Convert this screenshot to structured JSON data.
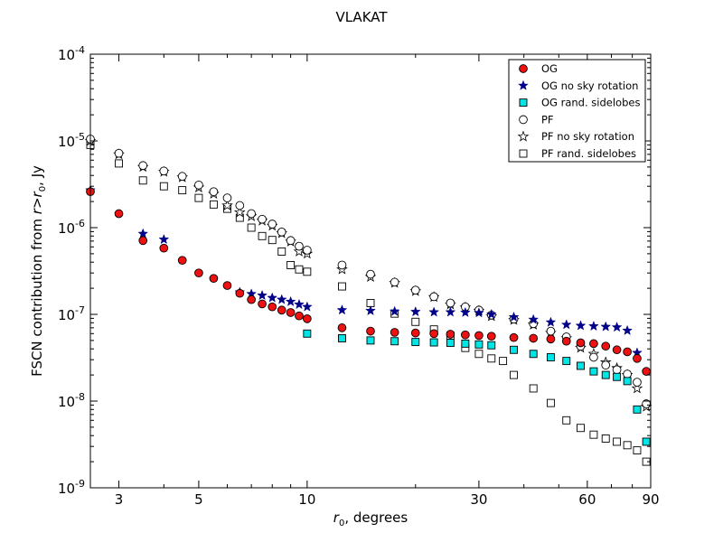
{
  "chart_data": {
    "type": "scatter",
    "title": "VLAKAT",
    "xlabel": "r_0, degrees",
    "ylabel": "FSCN contribution from r>r_0, Jy",
    "xscale": "log",
    "yscale": "log",
    "xlim": [
      2.5,
      90
    ],
    "ylim": [
      1e-09,
      0.0001
    ],
    "x_ticks": [
      3,
      5,
      10,
      30,
      60,
      90
    ],
    "x_tick_labels": [
      "3",
      "5",
      "10",
      "30",
      "60",
      "90"
    ],
    "y_ticks": [
      1e-09,
      1e-08,
      1e-07,
      1e-06,
      1e-05,
      0.0001
    ],
    "y_tick_labels": [
      {
        "base": "10",
        "exp": "-9"
      },
      {
        "base": "10",
        "exp": "-8"
      },
      {
        "base": "10",
        "exp": "-7"
      },
      {
        "base": "10",
        "exp": "-6"
      },
      {
        "base": "10",
        "exp": "-5"
      },
      {
        "base": "10",
        "exp": "-4"
      }
    ],
    "grid": false,
    "legend_position": "top-right",
    "series": [
      {
        "name": "OG",
        "marker": "circle",
        "color": "#ee1111",
        "points": [
          [
            2.5,
            2.6e-06
          ],
          [
            3,
            1.45e-06
          ],
          [
            3.5,
            7.1e-07
          ],
          [
            4,
            5.8e-07
          ],
          [
            4.5,
            4.2e-07
          ],
          [
            5,
            3e-07
          ],
          [
            5.5,
            2.6e-07
          ],
          [
            6,
            2.15e-07
          ],
          [
            6.5,
            1.75e-07
          ],
          [
            7,
            1.48e-07
          ],
          [
            7.5,
            1.32e-07
          ],
          [
            8,
            1.22e-07
          ],
          [
            8.5,
            1.12e-07
          ],
          [
            9,
            1.05e-07
          ],
          [
            9.5,
            9.6e-08
          ],
          [
            10,
            8.9e-08
          ],
          [
            12.5,
            7e-08
          ],
          [
            15,
            6.4e-08
          ],
          [
            17.5,
            6.2e-08
          ],
          [
            20,
            6.1e-08
          ],
          [
            22.5,
            6e-08
          ],
          [
            25,
            5.9e-08
          ],
          [
            27.5,
            5.8e-08
          ],
          [
            30,
            5.7e-08
          ],
          [
            32.5,
            5.6e-08
          ],
          [
            37.5,
            5.4e-08
          ],
          [
            42.5,
            5.3e-08
          ],
          [
            47.5,
            5.2e-08
          ],
          [
            52.5,
            4.9e-08
          ],
          [
            57.5,
            4.7e-08
          ],
          [
            62.5,
            4.6e-08
          ],
          [
            67.5,
            4.3e-08
          ],
          [
            72.5,
            3.9e-08
          ],
          [
            77.5,
            3.7e-08
          ],
          [
            82.5,
            3.1e-08
          ],
          [
            87.5,
            2.2e-08
          ]
        ]
      },
      {
        "name": "OG no sky rotation",
        "marker": "star",
        "color": "#000088",
        "points": [
          [
            2.5,
            2.7e-06
          ],
          [
            3.5,
            8.5e-07
          ],
          [
            4,
            7.3e-07
          ],
          [
            6.5,
            1.8e-07
          ],
          [
            7,
            1.72e-07
          ],
          [
            7.5,
            1.65e-07
          ],
          [
            8,
            1.55e-07
          ],
          [
            8.5,
            1.48e-07
          ],
          [
            9,
            1.4e-07
          ],
          [
            9.5,
            1.3e-07
          ],
          [
            10,
            1.22e-07
          ],
          [
            12.5,
            1.12e-07
          ],
          [
            15,
            1.1e-07
          ],
          [
            17.5,
            1.08e-07
          ],
          [
            20,
            1.07e-07
          ],
          [
            22.5,
            1.06e-07
          ],
          [
            25,
            1.06e-07
          ],
          [
            27.5,
            1.05e-07
          ],
          [
            30,
            1.04e-07
          ],
          [
            32.5,
            1e-07
          ],
          [
            37.5,
            9.3e-08
          ],
          [
            42.5,
            8.7e-08
          ],
          [
            47.5,
            8.1e-08
          ],
          [
            52.5,
            7.6e-08
          ],
          [
            57.5,
            7.4e-08
          ],
          [
            62.5,
            7.3e-08
          ],
          [
            67.5,
            7.2e-08
          ],
          [
            72.5,
            7.1e-08
          ],
          [
            77.5,
            6.5e-08
          ],
          [
            82.5,
            3.6e-08
          ]
        ]
      },
      {
        "name": "OG rand. sidelobes",
        "marker": "square",
        "color": "#00e5e5",
        "points": [
          [
            10,
            6e-08
          ],
          [
            12.5,
            5.3e-08
          ],
          [
            15,
            5e-08
          ],
          [
            17.5,
            4.9e-08
          ],
          [
            20,
            4.8e-08
          ],
          [
            22.5,
            4.75e-08
          ],
          [
            25,
            4.7e-08
          ],
          [
            27.5,
            4.6e-08
          ],
          [
            30,
            4.5e-08
          ],
          [
            32.5,
            4.4e-08
          ],
          [
            37.5,
            3.9e-08
          ],
          [
            42.5,
            3.5e-08
          ],
          [
            47.5,
            3.2e-08
          ],
          [
            52.5,
            2.9e-08
          ],
          [
            57.5,
            2.55e-08
          ],
          [
            62.5,
            2.2e-08
          ],
          [
            67.5,
            2e-08
          ],
          [
            72.5,
            1.9e-08
          ],
          [
            77.5,
            1.7e-08
          ],
          [
            82.5,
            8e-09
          ],
          [
            87.5,
            3.4e-09
          ]
        ]
      },
      {
        "name": "PF",
        "marker": "circle-open",
        "color": "#ffffff",
        "points": [
          [
            2.5,
            1.05e-05
          ],
          [
            3,
            7.2e-06
          ],
          [
            3.5,
            5.2e-06
          ],
          [
            4,
            4.5e-06
          ],
          [
            4.5,
            3.9e-06
          ],
          [
            5,
            3.1e-06
          ],
          [
            5.5,
            2.6e-06
          ],
          [
            6,
            2.2e-06
          ],
          [
            6.5,
            1.8e-06
          ],
          [
            7,
            1.45e-06
          ],
          [
            7.5,
            1.25e-06
          ],
          [
            8,
            1.1e-06
          ],
          [
            8.5,
            8.9e-07
          ],
          [
            9,
            7.1e-07
          ],
          [
            9.5,
            6.1e-07
          ],
          [
            10,
            5.5e-07
          ],
          [
            12.5,
            3.7e-07
          ],
          [
            15,
            2.9e-07
          ],
          [
            17.5,
            2.35e-07
          ],
          [
            20,
            1.9e-07
          ],
          [
            22.5,
            1.6e-07
          ],
          [
            25,
            1.35e-07
          ],
          [
            27.5,
            1.22e-07
          ],
          [
            30,
            1.12e-07
          ],
          [
            32.5,
            9.8e-08
          ],
          [
            37.5,
            8.8e-08
          ],
          [
            42.5,
            7.8e-08
          ],
          [
            47.5,
            6.4e-08
          ],
          [
            52.5,
            5.5e-08
          ],
          [
            57.5,
            4.3e-08
          ],
          [
            62.5,
            3.2e-08
          ],
          [
            67.5,
            2.6e-08
          ],
          [
            72.5,
            2.3e-08
          ],
          [
            77.5,
            2.05e-08
          ],
          [
            82.5,
            1.65e-08
          ],
          [
            87.5,
            9.3e-09
          ]
        ]
      },
      {
        "name": "PF no sky rotation",
        "marker": "star-open",
        "color": "#ffffff",
        "points": [
          [
            2.5,
            1e-05
          ],
          [
            3,
            7e-06
          ],
          [
            3.5,
            5e-06
          ],
          [
            4,
            4.4e-06
          ],
          [
            4.5,
            3.8e-06
          ],
          [
            5,
            2.9e-06
          ],
          [
            5.5,
            2.45e-06
          ],
          [
            6,
            1.8e-06
          ],
          [
            6.5,
            1.5e-06
          ],
          [
            7,
            1.35e-06
          ],
          [
            7.5,
            1.2e-06
          ],
          [
            8,
            1.05e-06
          ],
          [
            8.5,
            8.6e-07
          ],
          [
            9,
            6.9e-07
          ],
          [
            9.5,
            5.3e-07
          ],
          [
            10,
            5e-07
          ],
          [
            12.5,
            3.3e-07
          ],
          [
            15,
            2.7e-07
          ],
          [
            17.5,
            2.3e-07
          ],
          [
            20,
            1.85e-07
          ],
          [
            22.5,
            1.58e-07
          ],
          [
            25,
            1.3e-07
          ],
          [
            27.5,
            1.2e-07
          ],
          [
            30,
            1.1e-07
          ],
          [
            32.5,
            9.5e-08
          ],
          [
            37.5,
            8.6e-08
          ],
          [
            42.5,
            7.6e-08
          ],
          [
            47.5,
            6.1e-08
          ],
          [
            52.5,
            5.3e-08
          ],
          [
            57.5,
            4.1e-08
          ],
          [
            62.5,
            3.5e-08
          ],
          [
            67.5,
            2.8e-08
          ],
          [
            72.5,
            2.4e-08
          ],
          [
            77.5,
            2e-08
          ],
          [
            82.5,
            1.4e-08
          ],
          [
            87.5,
            8.6e-09
          ]
        ]
      },
      {
        "name": "PF rand. sidelobes",
        "marker": "square-open",
        "color": "#ffffff",
        "points": [
          [
            2.5,
            9e-06
          ],
          [
            3,
            5.5e-06
          ],
          [
            3.5,
            3.5e-06
          ],
          [
            4,
            3e-06
          ],
          [
            4.5,
            2.7e-06
          ],
          [
            5,
            2.2e-06
          ],
          [
            5.5,
            1.85e-06
          ],
          [
            6,
            1.65e-06
          ],
          [
            6.5,
            1.3e-06
          ],
          [
            7,
            1e-06
          ],
          [
            7.5,
            8e-07
          ],
          [
            8,
            7.2e-07
          ],
          [
            8.5,
            5.3e-07
          ],
          [
            9,
            3.7e-07
          ],
          [
            9.5,
            3.3e-07
          ],
          [
            10,
            3.1e-07
          ],
          [
            12.5,
            2.1e-07
          ],
          [
            15,
            1.35e-07
          ],
          [
            17.5,
            1.02e-07
          ],
          [
            20,
            8.2e-08
          ],
          [
            22.5,
            6.7e-08
          ],
          [
            25,
            5.7e-08
          ],
          [
            27.5,
            4.1e-08
          ],
          [
            30,
            3.5e-08
          ],
          [
            32.5,
            3.1e-08
          ],
          [
            35,
            2.9e-08
          ],
          [
            37.5,
            2e-08
          ],
          [
            42.5,
            1.4e-08
          ],
          [
            47.5,
            9.5e-09
          ],
          [
            52.5,
            6e-09
          ],
          [
            57.5,
            4.9e-09
          ],
          [
            62.5,
            4.1e-09
          ],
          [
            67.5,
            3.7e-09
          ],
          [
            72.5,
            3.4e-09
          ],
          [
            77.5,
            3.1e-09
          ],
          [
            82.5,
            2.7e-09
          ],
          [
            87.5,
            2e-09
          ]
        ]
      }
    ]
  }
}
